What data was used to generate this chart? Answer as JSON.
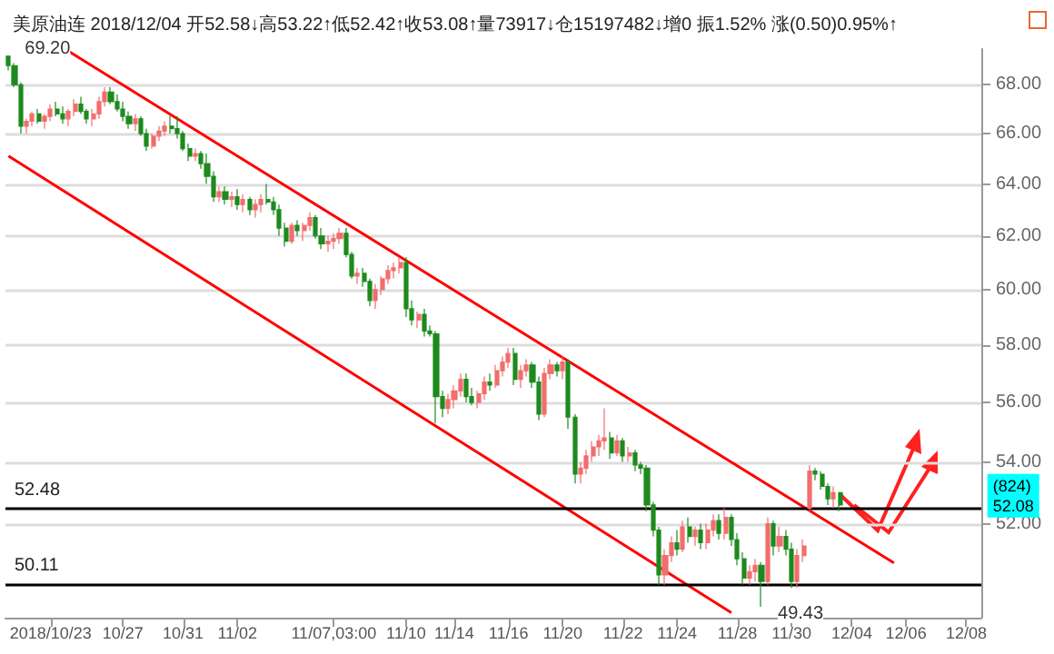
{
  "chart_data": {
    "type": "candlestick",
    "title": "美原油连 2018/12/04 开52.58↓高53.22↑低52.42↑收53.08↑量73917↓仓15197482↓增0 振1.52% 涨(0.50)0.95%↑",
    "categories": [
      null,
      null,
      null,
      null,
      null,
      null,
      null,
      "2018/10/23",
      null,
      null,
      null,
      null,
      null,
      null,
      null,
      null,
      null,
      null,
      null,
      "10/27",
      null,
      null,
      null,
      null,
      null,
      null,
      null,
      null,
      null,
      "10/31",
      null,
      null,
      null,
      null,
      null,
      null,
      null,
      null,
      "11/02",
      null,
      null,
      null,
      null,
      null,
      null,
      null,
      null,
      null,
      null,
      null,
      null,
      null,
      null,
      null,
      "11/07,03:00",
      null,
      null,
      null,
      null,
      null,
      null,
      null,
      null,
      null,
      null,
      null,
      "11/10",
      null,
      null,
      null,
      null,
      null,
      null,
      null,
      "11/14",
      null,
      null,
      null,
      null,
      null,
      null,
      null,
      null,
      "11/16",
      null,
      null,
      null,
      null,
      null,
      null,
      null,
      null,
      "11/20",
      null,
      null,
      null,
      null,
      null,
      null,
      null,
      null,
      null,
      "11/22",
      null,
      null,
      null,
      null,
      null,
      null,
      null,
      null,
      "11/24",
      null,
      null,
      null,
      null,
      null,
      null,
      null,
      null,
      null,
      "11/28",
      null,
      null,
      null,
      null,
      null,
      null,
      null,
      null,
      "11/30",
      null,
      null,
      null,
      null,
      null,
      null,
      null,
      null,
      null,
      "12/04",
      null,
      null,
      null,
      null,
      null,
      null,
      null,
      null,
      "12/06",
      null,
      null,
      null,
      null,
      null,
      null,
      null,
      null,
      null,
      "12/08",
      null,
      null
    ],
    "ohlc": [
      [
        69.2,
        69.2,
        68.6,
        68.8
      ],
      [
        68.8,
        68.9,
        67.9,
        68.0
      ],
      [
        68.0,
        68.1,
        66.0,
        66.3
      ],
      [
        66.3,
        66.6,
        66.0,
        66.5
      ],
      [
        66.5,
        66.9,
        66.3,
        66.8
      ],
      [
        66.8,
        67.0,
        66.4,
        66.5
      ],
      [
        66.5,
        66.8,
        66.2,
        66.7
      ],
      [
        66.7,
        67.2,
        66.5,
        67.0
      ],
      [
        67.0,
        67.3,
        66.7,
        66.8
      ],
      [
        66.8,
        67.1,
        66.4,
        66.6
      ],
      [
        66.6,
        67.0,
        66.3,
        66.9
      ],
      [
        66.9,
        67.4,
        66.7,
        67.2
      ],
      [
        67.2,
        67.5,
        66.8,
        66.9
      ],
      [
        66.9,
        67.0,
        66.4,
        66.6
      ],
      [
        66.6,
        67.0,
        66.3,
        66.8
      ],
      [
        66.8,
        67.5,
        66.6,
        67.3
      ],
      [
        67.3,
        67.9,
        67.1,
        67.7
      ],
      [
        67.7,
        67.9,
        67.2,
        67.3
      ],
      [
        67.3,
        67.6,
        66.9,
        67.0
      ],
      [
        67.0,
        67.3,
        66.5,
        66.7
      ],
      [
        66.7,
        66.9,
        66.2,
        66.4
      ],
      [
        66.4,
        66.8,
        66.1,
        66.6
      ],
      [
        66.6,
        66.7,
        65.9,
        66.0
      ],
      [
        66.0,
        66.2,
        65.3,
        65.5
      ],
      [
        65.5,
        66.0,
        65.4,
        65.9
      ],
      [
        65.9,
        66.3,
        65.7,
        66.1
      ],
      [
        66.1,
        66.5,
        65.9,
        66.3
      ],
      [
        66.3,
        66.7,
        66.0,
        66.2
      ],
      [
        66.2,
        66.7,
        65.8,
        66.0
      ],
      [
        66.0,
        66.1,
        65.3,
        65.4
      ],
      [
        65.4,
        65.6,
        64.9,
        65.1
      ],
      [
        65.1,
        65.4,
        64.9,
        65.2
      ],
      [
        65.2,
        65.3,
        64.6,
        64.8
      ],
      [
        64.8,
        65.2,
        64.0,
        64.3
      ],
      [
        64.3,
        64.5,
        63.3,
        63.5
      ],
      [
        63.5,
        63.9,
        63.3,
        63.7
      ],
      [
        63.7,
        63.9,
        63.2,
        63.4
      ],
      [
        63.4,
        63.7,
        63.1,
        63.5
      ],
      [
        63.5,
        63.8,
        63.0,
        63.2
      ],
      [
        63.2,
        63.6,
        62.9,
        63.4
      ],
      [
        63.4,
        63.5,
        62.8,
        63.0
      ],
      [
        63.0,
        63.4,
        62.7,
        63.2
      ],
      [
        63.2,
        63.6,
        62.9,
        63.4
      ],
      [
        63.4,
        64.0,
        63.2,
        63.3
      ],
      [
        63.3,
        63.5,
        62.8,
        63.0
      ],
      [
        63.0,
        63.2,
        62.0,
        62.3
      ],
      [
        62.3,
        62.5,
        61.6,
        61.8
      ],
      [
        61.8,
        62.5,
        61.7,
        62.4
      ],
      [
        62.4,
        62.6,
        62.0,
        62.2
      ],
      [
        62.2,
        62.5,
        61.8,
        62.4
      ],
      [
        62.4,
        62.9,
        62.2,
        62.7
      ],
      [
        62.7,
        62.8,
        61.9,
        62.0
      ],
      [
        62.0,
        62.3,
        61.5,
        61.7
      ],
      [
        61.7,
        62.0,
        61.4,
        61.8
      ],
      [
        61.8,
        62.1,
        61.5,
        61.9
      ],
      [
        61.9,
        62.3,
        61.7,
        62.1
      ],
      [
        62.1,
        62.3,
        61.2,
        61.3
      ],
      [
        61.3,
        61.4,
        60.4,
        60.5
      ],
      [
        60.5,
        60.8,
        60.2,
        60.6
      ],
      [
        60.6,
        60.8,
        60.1,
        60.3
      ],
      [
        60.3,
        60.4,
        59.4,
        59.6
      ],
      [
        59.6,
        60.2,
        59.3,
        60.0
      ],
      [
        60.0,
        60.5,
        59.8,
        60.4
      ],
      [
        60.4,
        60.9,
        60.2,
        60.7
      ],
      [
        60.7,
        61.0,
        60.4,
        60.8
      ],
      [
        60.8,
        61.2,
        60.6,
        61.0
      ],
      [
        61.0,
        61.2,
        59.0,
        59.3
      ],
      [
        59.3,
        59.6,
        58.7,
        58.9
      ],
      [
        58.9,
        59.2,
        58.6,
        59.1
      ],
      [
        59.1,
        59.3,
        58.3,
        58.5
      ],
      [
        58.5,
        58.7,
        58.3,
        58.4
      ],
      [
        58.4,
        58.5,
        55.3,
        56.2
      ],
      [
        56.2,
        56.4,
        55.5,
        55.8
      ],
      [
        55.8,
        56.3,
        55.6,
        56.1
      ],
      [
        56.1,
        56.6,
        55.8,
        56.4
      ],
      [
        56.4,
        57.0,
        56.2,
        56.8
      ],
      [
        56.8,
        57.0,
        56.0,
        56.2
      ],
      [
        56.2,
        56.5,
        55.9,
        56.0
      ],
      [
        56.0,
        56.4,
        55.8,
        56.3
      ],
      [
        56.3,
        56.9,
        56.1,
        56.7
      ],
      [
        56.7,
        57.0,
        56.4,
        56.6
      ],
      [
        56.6,
        57.3,
        56.5,
        57.1
      ],
      [
        57.1,
        57.6,
        56.9,
        57.4
      ],
      [
        57.4,
        57.9,
        57.2,
        57.7
      ],
      [
        57.7,
        57.9,
        56.6,
        56.8
      ],
      [
        56.8,
        57.3,
        56.5,
        57.1
      ],
      [
        57.1,
        57.5,
        56.9,
        57.3
      ],
      [
        57.3,
        57.4,
        56.5,
        56.7
      ],
      [
        56.7,
        56.9,
        55.4,
        55.6
      ],
      [
        55.6,
        57.2,
        55.5,
        57.0
      ],
      [
        57.0,
        57.5,
        56.8,
        57.3
      ],
      [
        57.3,
        57.4,
        56.9,
        57.1
      ],
      [
        57.1,
        57.6,
        56.8,
        57.4
      ],
      [
        57.4,
        57.5,
        55.1,
        55.5
      ],
      [
        55.5,
        55.6,
        53.3,
        53.6
      ],
      [
        53.6,
        54.0,
        53.3,
        53.8
      ],
      [
        53.8,
        54.4,
        53.6,
        54.2
      ],
      [
        54.2,
        54.7,
        54.0,
        54.5
      ],
      [
        54.5,
        54.9,
        54.2,
        54.7
      ],
      [
        54.7,
        55.8,
        54.4,
        54.8
      ],
      [
        54.8,
        55.0,
        54.1,
        54.3
      ],
      [
        54.3,
        54.9,
        54.2,
        54.7
      ],
      [
        54.7,
        54.8,
        54.0,
        54.2
      ],
      [
        54.2,
        54.5,
        54.0,
        54.3
      ],
      [
        54.3,
        54.4,
        53.7,
        53.9
      ],
      [
        53.9,
        54.0,
        53.6,
        53.8
      ],
      [
        53.8,
        53.9,
        52.4,
        52.6
      ],
      [
        52.6,
        52.7,
        51.6,
        51.8
      ],
      [
        51.8,
        51.9,
        50.1,
        50.4
      ],
      [
        50.4,
        51.2,
        50.1,
        51.0
      ],
      [
        51.0,
        51.6,
        50.8,
        51.4
      ],
      [
        51.4,
        51.8,
        51.0,
        51.2
      ],
      [
        51.2,
        52.1,
        51.1,
        51.9
      ],
      [
        51.9,
        52.2,
        51.4,
        51.6
      ],
      [
        51.6,
        51.9,
        51.3,
        51.8
      ],
      [
        51.8,
        52.0,
        51.2,
        51.4
      ],
      [
        51.4,
        52.0,
        51.2,
        51.8
      ],
      [
        51.8,
        52.3,
        51.6,
        52.1
      ],
      [
        52.1,
        52.3,
        51.5,
        51.7
      ],
      [
        51.7,
        52.5,
        51.5,
        52.2
      ],
      [
        52.2,
        52.3,
        51.3,
        51.5
      ],
      [
        51.5,
        51.7,
        50.7,
        50.9
      ],
      [
        50.9,
        51.1,
        50.1,
        50.3
      ],
      [
        50.3,
        50.7,
        50.1,
        50.5
      ],
      [
        50.5,
        50.9,
        50.2,
        50.7
      ],
      [
        50.7,
        50.8,
        49.43,
        50.2
      ],
      [
        50.2,
        52.2,
        50.1,
        52.0
      ],
      [
        52.0,
        52.1,
        51.0,
        51.3
      ],
      [
        51.3,
        51.9,
        51.1,
        51.6
      ],
      [
        51.6,
        51.8,
        51.0,
        51.2
      ],
      [
        51.2,
        51.4,
        50.0,
        50.2
      ],
      [
        50.2,
        51.2,
        50.0,
        51.0
      ],
      [
        51.0,
        51.5,
        50.8,
        51.3
      ],
      [
        52.5,
        53.9,
        52.4,
        53.7
      ],
      [
        53.7,
        53.8,
        53.4,
        53.6
      ],
      [
        53.6,
        53.7,
        53.1,
        53.2
      ],
      [
        53.2,
        53.3,
        52.6,
        52.8
      ],
      [
        52.8,
        53.2,
        52.5,
        53.0
      ],
      [
        53.0,
        53.0,
        52.4,
        52.6
      ],
      null,
      null,
      null,
      null,
      null,
      null,
      null,
      null,
      null,
      null,
      null,
      null,
      null,
      null,
      null,
      null,
      null,
      null,
      null,
      null,
      null,
      null,
      null
    ],
    "series": [
      {
        "type": "line",
        "color": "#ff0000",
        "values": [
          null,
          null,
          null,
          null,
          null,
          null,
          null,
          null,
          null,
          null,
          69.4,
          null,
          null,
          null,
          null,
          null,
          null,
          null,
          null,
          null,
          null,
          null,
          null,
          null,
          null,
          null,
          null,
          null,
          null,
          null,
          null,
          null,
          null,
          null,
          null,
          null,
          null,
          null,
          null,
          null,
          null,
          null,
          null,
          null,
          null,
          null,
          null,
          null,
          null,
          null,
          null,
          null,
          null,
          null,
          null,
          null,
          null,
          null,
          null,
          null,
          null,
          null,
          null,
          null,
          null,
          null,
          null,
          null,
          null,
          null,
          null,
          null,
          null,
          null,
          null,
          null,
          null,
          null,
          null,
          null,
          null,
          null,
          null,
          null,
          null,
          null,
          null,
          null,
          null,
          null,
          null,
          null,
          null,
          null,
          null,
          null,
          null,
          null,
          null,
          null,
          null,
          null,
          null,
          null,
          null,
          null,
          null,
          null,
          null,
          null,
          null,
          null,
          null,
          null,
          null,
          null,
          null,
          null,
          null,
          null,
          null,
          null,
          null,
          null,
          null,
          null,
          null,
          null,
          null,
          null,
          null,
          null,
          null,
          null,
          null,
          null,
          null,
          null,
          null,
          null,
          null,
          null,
          null,
          null,
          null,
          null,
          null,
          50.77,
          null,
          null,
          null,
          null,
          null,
          null,
          null,
          null,
          null,
          null,
          null,
          null,
          null,
          null
        ]
      },
      {
        "type": "line",
        "color": "#ff0000",
        "values": [
          65.1,
          null,
          null,
          null,
          null,
          null,
          null,
          null,
          null,
          null,
          null,
          null,
          null,
          null,
          null,
          null,
          null,
          null,
          null,
          null,
          null,
          null,
          null,
          null,
          null,
          null,
          null,
          null,
          null,
          null,
          null,
          null,
          null,
          null,
          null,
          null,
          null,
          null,
          null,
          null,
          null,
          null,
          null,
          null,
          null,
          null,
          null,
          null,
          null,
          null,
          null,
          null,
          null,
          null,
          null,
          null,
          null,
          null,
          null,
          null,
          null,
          null,
          null,
          null,
          null,
          null,
          null,
          null,
          null,
          null,
          null,
          null,
          null,
          null,
          null,
          null,
          null,
          null,
          null,
          null,
          null,
          null,
          null,
          null,
          null,
          null,
          null,
          null,
          null,
          null,
          null,
          null,
          null,
          null,
          null,
          null,
          null,
          null,
          null,
          null,
          null,
          null,
          null,
          null,
          null,
          null,
          null,
          null,
          null,
          null,
          null,
          null,
          null,
          null,
          null,
          null,
          null,
          null,
          null,
          null,
          49.25,
          null,
          null,
          null,
          null,
          null,
          null,
          null,
          null,
          null,
          null,
          null,
          null,
          null,
          null,
          null,
          null,
          null,
          null,
          null,
          null,
          null,
          null,
          null,
          null,
          null,
          null,
          null,
          null,
          null,
          null,
          null,
          null,
          null,
          null,
          null,
          null,
          null,
          null,
          null,
          null,
          null
        ]
      }
    ],
    "ylim": [
      49.1,
      69.5
    ],
    "yticks": [
      {
        "value": 52,
        "label": "52.00"
      },
      {
        "value": 54,
        "label": "54.00"
      },
      {
        "value": 56,
        "label": "56.00"
      },
      {
        "value": 58,
        "label": "58.00"
      },
      {
        "value": 60,
        "label": "60.00"
      },
      {
        "value": 62,
        "label": "62.00"
      },
      {
        "value": 64,
        "label": "64.00"
      },
      {
        "value": 66,
        "label": "66.00"
      },
      {
        "value": 68,
        "label": "68.00"
      }
    ],
    "log": "y",
    "grid": "y",
    "ref_lines": [
      {
        "axis": "y",
        "value": 52.48,
        "label": "52.48",
        "color": "#000000"
      },
      {
        "axis": "y",
        "value": 50.11,
        "label": "50.11",
        "color": "#000000"
      }
    ],
    "annotations": [
      "69.20",
      "49.43",
      "(824)\n52.08"
    ]
  }
}
